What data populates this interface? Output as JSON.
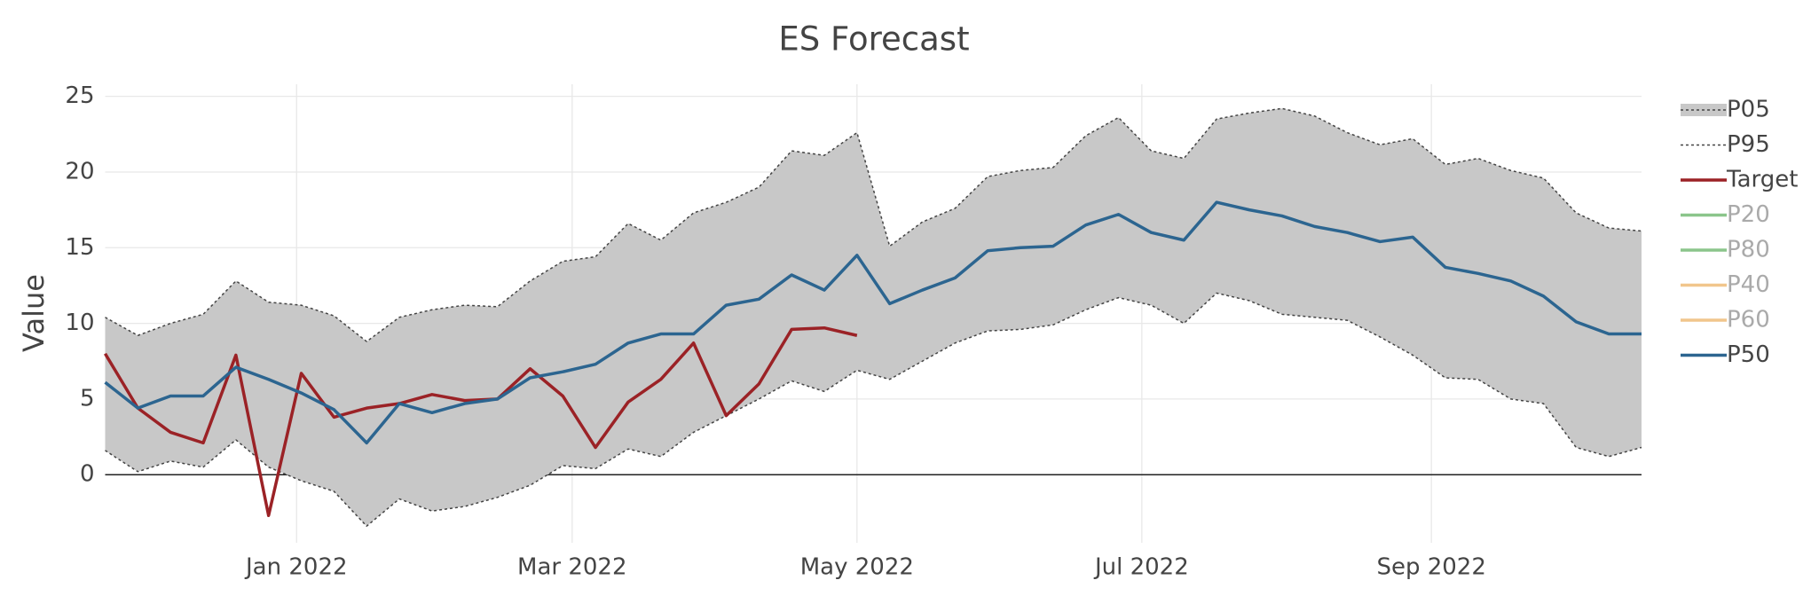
{
  "chart_data": {
    "type": "line",
    "title": "ES Forecast",
    "y_label": "Value",
    "x": [
      "2021-11-21",
      "2021-11-28",
      "2021-12-05",
      "2021-12-12",
      "2021-12-19",
      "2021-12-26",
      "2022-01-02",
      "2022-01-09",
      "2022-01-16",
      "2022-01-23",
      "2022-01-30",
      "2022-02-06",
      "2022-02-13",
      "2022-02-20",
      "2022-02-27",
      "2022-03-06",
      "2022-03-13",
      "2022-03-20",
      "2022-03-27",
      "2022-04-03",
      "2022-04-10",
      "2022-04-17",
      "2022-04-24",
      "2022-05-01",
      "2022-05-08",
      "2022-05-15",
      "2022-05-22",
      "2022-05-29",
      "2022-06-05",
      "2022-06-12",
      "2022-06-19",
      "2022-06-26",
      "2022-07-03",
      "2022-07-10",
      "2022-07-17",
      "2022-07-24",
      "2022-07-31",
      "2022-08-07",
      "2022-08-14",
      "2022-08-21",
      "2022-08-28",
      "2022-09-04",
      "2022-09-11",
      "2022-09-18",
      "2022-09-25",
      "2022-10-02",
      "2022-10-09",
      "2022-10-16"
    ],
    "xlim": [
      "2021-11-21",
      "2022-10-16"
    ],
    "xticks": [
      {
        "value": "2022-01-01",
        "label": "Jan 2022"
      },
      {
        "value": "2022-03-01",
        "label": "Mar 2022"
      },
      {
        "value": "2022-05-01",
        "label": "May 2022"
      },
      {
        "value": "2022-07-01",
        "label": "Jul 2022"
      },
      {
        "value": "2022-09-01",
        "label": "Sep 2022"
      }
    ],
    "ylim": [
      -4.5,
      25.8
    ],
    "yticks": [
      0,
      5,
      10,
      15,
      20,
      25
    ],
    "grid": true,
    "band_color": "#c8c8c8",
    "series": [
      {
        "name": "P05",
        "color": "#444444",
        "dash": true,
        "band": true,
        "values": [
          1.6,
          0.2,
          0.9,
          0.5,
          2.3,
          0.5,
          -0.4,
          -1.1,
          -3.4,
          -1.6,
          -2.4,
          -2.1,
          -1.5,
          -0.7,
          0.6,
          0.4,
          1.7,
          1.2,
          2.8,
          3.9,
          5.0,
          6.2,
          5.5,
          6.9,
          6.3,
          7.5,
          8.7,
          9.5,
          9.6,
          9.9,
          10.9,
          11.7,
          11.2,
          10.0,
          12.0,
          11.5,
          10.6,
          10.4,
          10.2,
          9.1,
          7.9,
          6.4,
          6.3,
          5.0,
          4.7,
          1.8,
          1.2,
          1.8
        ]
      },
      {
        "name": "P95",
        "color": "#444444",
        "dash": true,
        "values": [
          10.4,
          9.2,
          10.0,
          10.6,
          12.8,
          11.4,
          11.2,
          10.5,
          8.8,
          10.4,
          10.9,
          11.2,
          11.1,
          12.8,
          14.1,
          14.4,
          16.6,
          15.5,
          17.3,
          18.0,
          19.0,
          21.4,
          21.1,
          22.6,
          15.1,
          16.7,
          17.6,
          19.7,
          20.1,
          20.3,
          22.4,
          23.6,
          21.4,
          20.9,
          23.5,
          23.9,
          24.2,
          23.7,
          22.6,
          21.8,
          22.2,
          20.5,
          20.9,
          20.1,
          19.6,
          17.3,
          16.3,
          16.1
        ]
      },
      {
        "name": "Target",
        "color": "#9b2226",
        "values": [
          8.0,
          4.4,
          2.8,
          2.1,
          7.9,
          -2.7,
          6.7,
          3.8,
          4.4,
          4.7,
          5.3,
          4.9,
          5.0,
          7.0,
          5.2,
          1.8,
          4.8,
          6.3,
          8.7,
          3.9,
          6.0,
          9.6,
          9.7,
          9.2,
          null,
          null,
          null,
          null,
          null,
          null,
          null,
          null,
          null,
          null,
          null,
          null,
          null,
          null,
          null,
          null,
          null,
          null,
          null,
          null,
          null,
          null,
          null,
          null
        ]
      },
      {
        "name": "P20",
        "color": "#7fbf7f",
        "legendonly": true
      },
      {
        "name": "P80",
        "color": "#7fbf7f",
        "legendonly": true
      },
      {
        "name": "P40",
        "color": "#f0c080",
        "legendonly": true
      },
      {
        "name": "P60",
        "color": "#f0c080",
        "legendonly": true
      },
      {
        "name": "P50",
        "color": "#2c6590",
        "values": [
          6.1,
          4.4,
          5.2,
          5.2,
          7.1,
          6.3,
          5.4,
          4.3,
          2.1,
          4.7,
          4.1,
          4.7,
          5.0,
          6.4,
          6.8,
          7.3,
          8.7,
          9.3,
          9.3,
          11.2,
          11.6,
          13.2,
          12.2,
          14.5,
          11.3,
          12.2,
          13.0,
          14.8,
          15.0,
          15.1,
          16.5,
          17.2,
          16.0,
          15.5,
          18.0,
          17.5,
          17.1,
          16.4,
          16.0,
          15.4,
          15.7,
          13.7,
          13.3,
          12.8,
          11.8,
          10.1,
          9.3,
          9.3
        ]
      }
    ]
  }
}
